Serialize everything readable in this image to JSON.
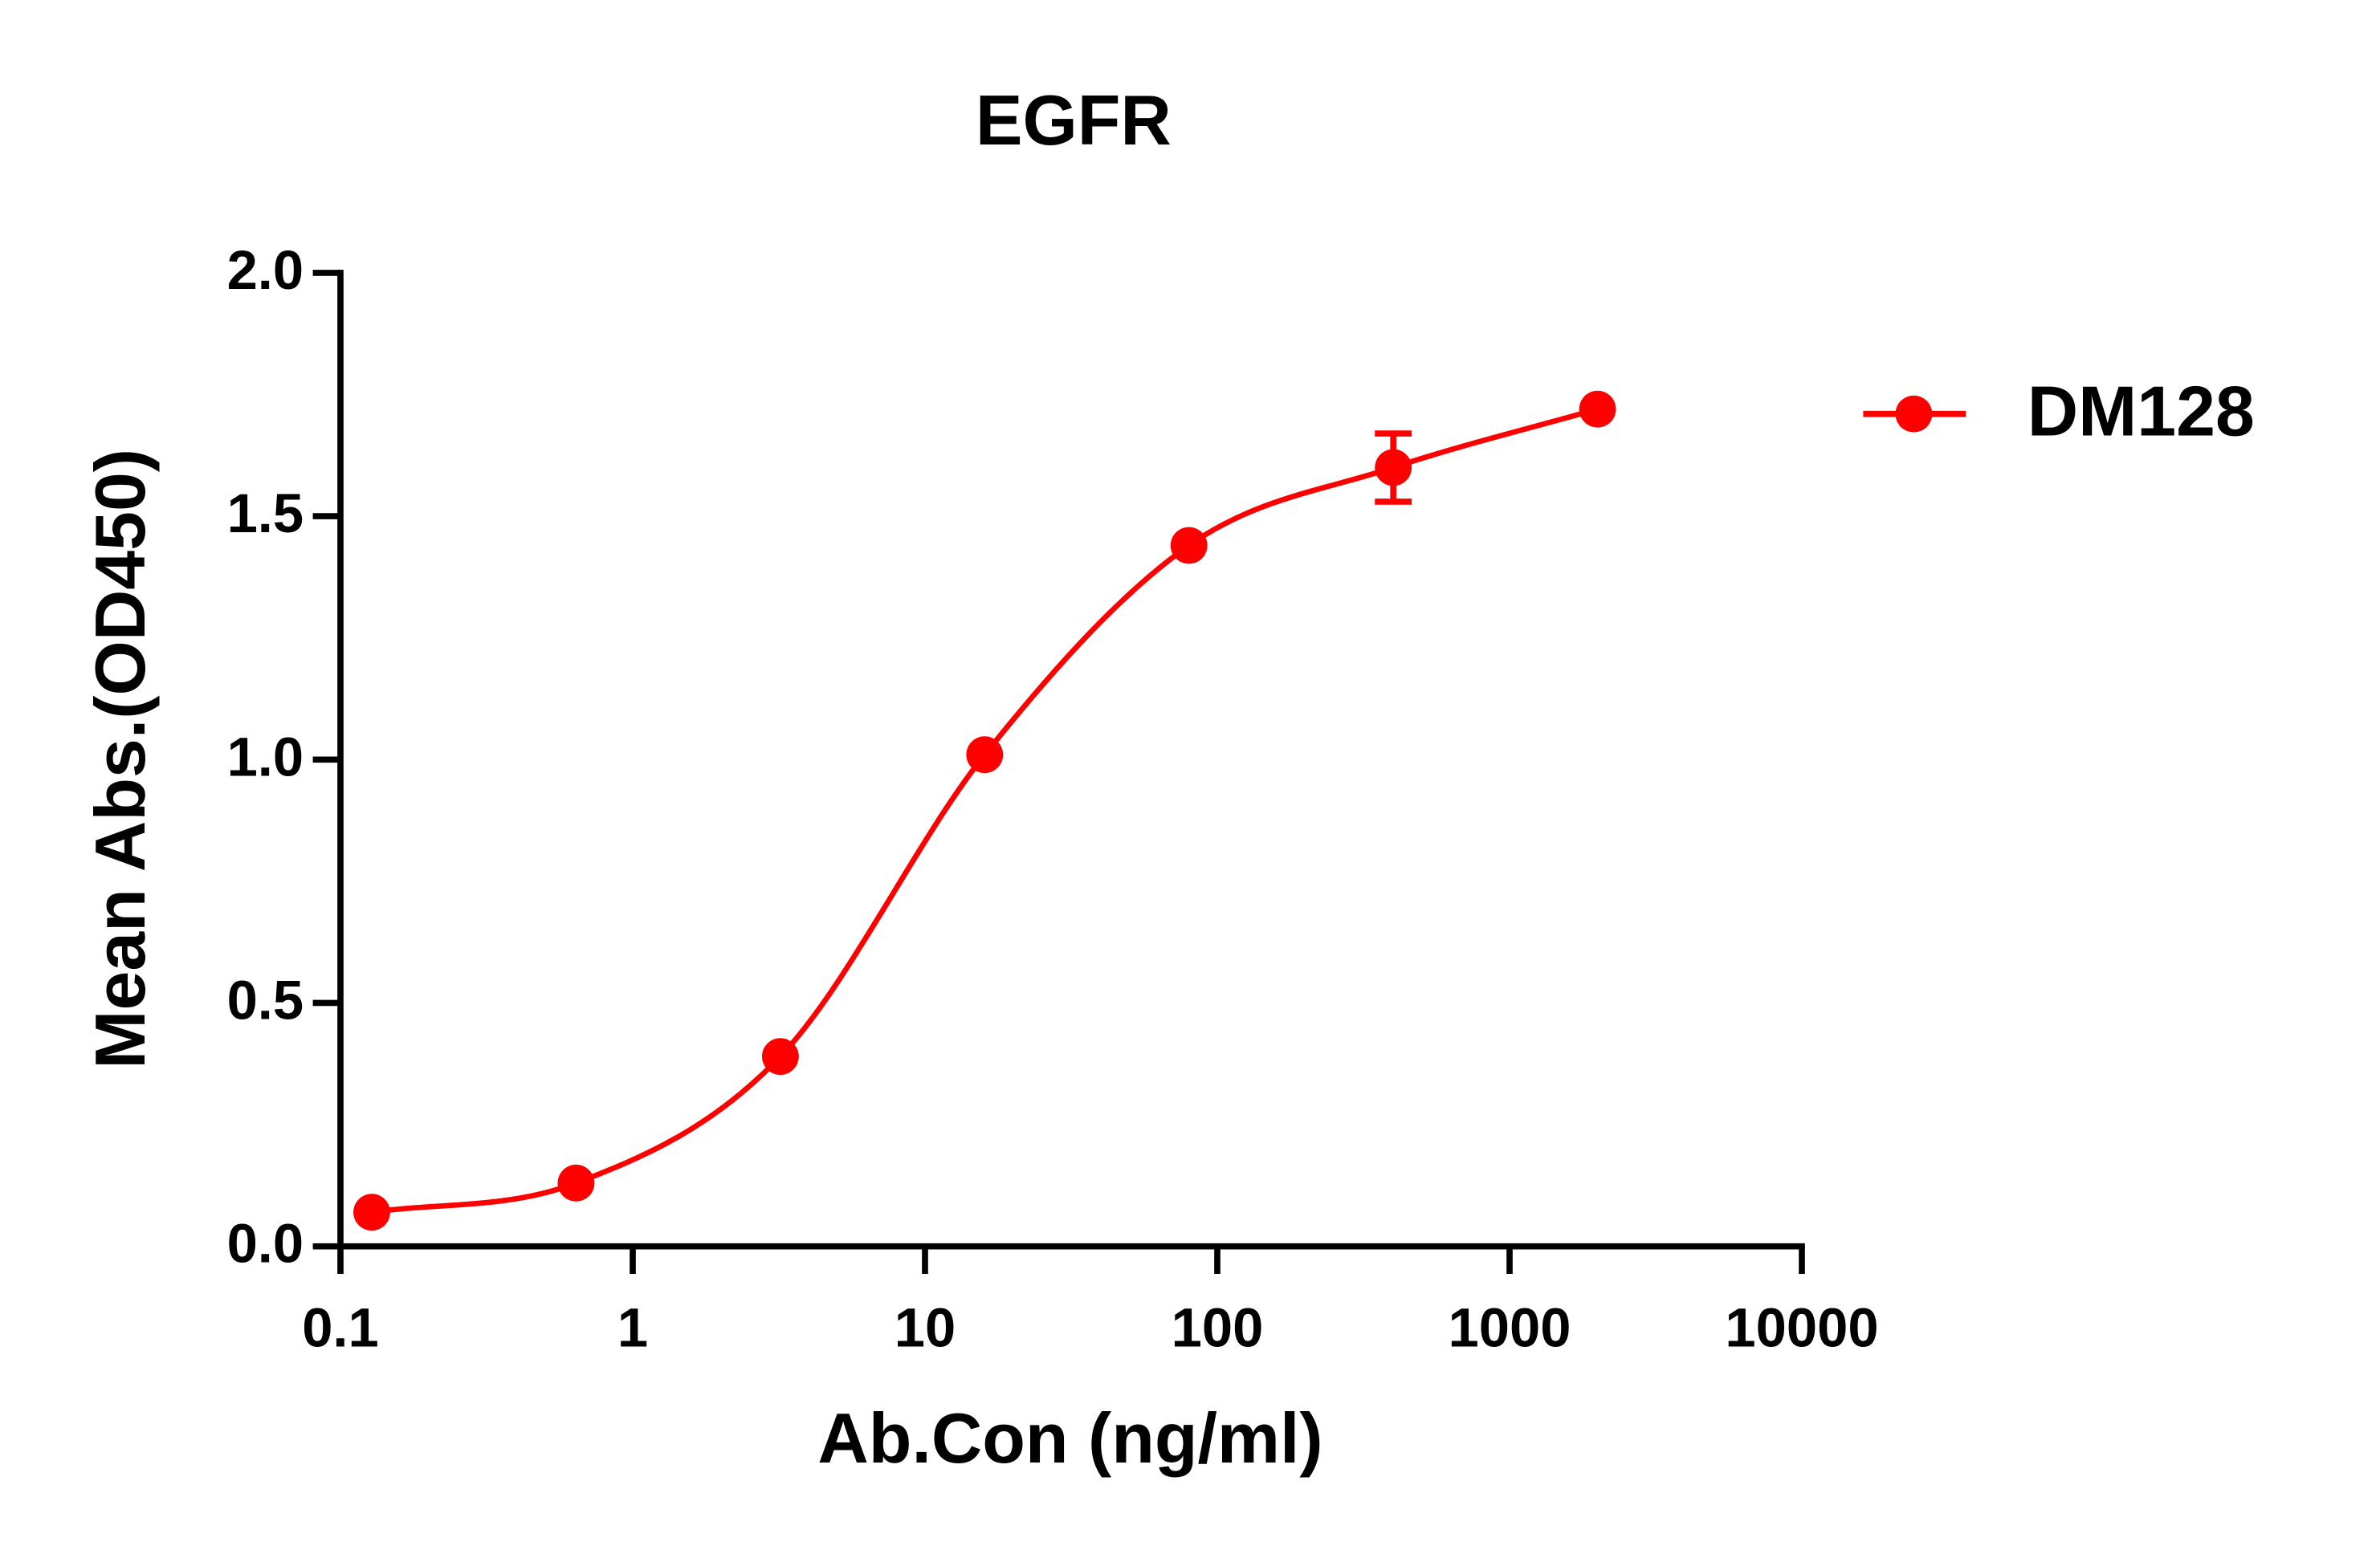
{
  "chart_data": {
    "type": "line",
    "title": "EGFR",
    "x_label": "Ab.Con (ng/ml)",
    "y_label": "Mean Abs.(OD450)",
    "x": [
      0.128,
      0.64,
      3.2,
      16,
      80,
      400,
      2000
    ],
    "series": [
      {
        "name": "DM128",
        "color": "#ff0000",
        "values": [
          0.07,
          0.13,
          0.39,
          1.01,
          1.44,
          1.6,
          1.72
        ],
        "errors": [
          null,
          null,
          null,
          null,
          null,
          0.07,
          null
        ]
      }
    ],
    "xlim": [
      0.1,
      10000
    ],
    "xticks": [
      0.1,
      1,
      10,
      100,
      1000,
      10000
    ],
    "x_log": true,
    "ylim": [
      0,
      2
    ],
    "yticks": [
      {
        "value": 0,
        "label": "0.0"
      },
      {
        "value": 0.5,
        "label": "0.5"
      },
      {
        "value": 1,
        "label": "1.0"
      },
      {
        "value": 1.5,
        "label": "1.5"
      },
      {
        "value": 2,
        "label": "2.0"
      }
    ],
    "legend": "right"
  }
}
